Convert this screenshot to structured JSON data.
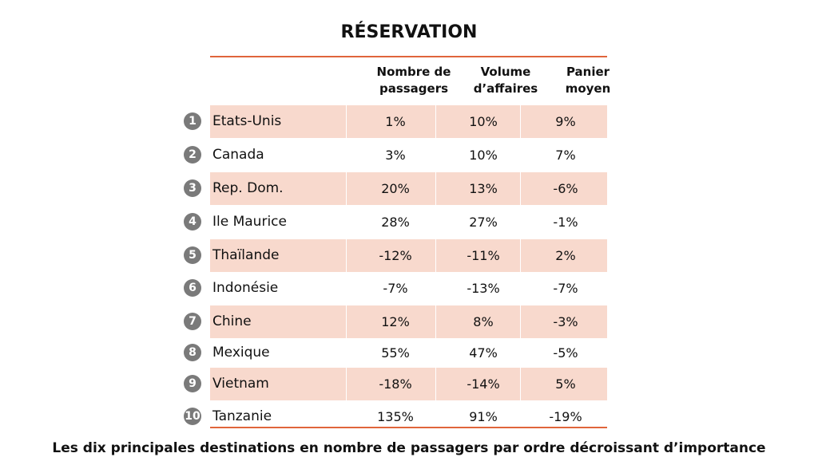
{
  "title": "RÉSERVATION",
  "columns": {
    "passengers": [
      "Nombre de",
      "passagers"
    ],
    "volume": [
      "Volume",
      "d’affaires"
    ],
    "basket": [
      "Panier",
      "moyen"
    ]
  },
  "rows": [
    {
      "rank": "1",
      "country": "Etats-Unis",
      "passengers": "1%",
      "volume": "10%",
      "basket": "9%"
    },
    {
      "rank": "2",
      "country": "Canada",
      "passengers": "3%",
      "volume": "10%",
      "basket": "7%"
    },
    {
      "rank": "3",
      "country": "Rep. Dom.",
      "passengers": "20%",
      "volume": "13%",
      "basket": "-6%"
    },
    {
      "rank": "4",
      "country": "Ile Maurice",
      "passengers": "28%",
      "volume": "27%",
      "basket": "-1%"
    },
    {
      "rank": "5",
      "country": "Thaïlande",
      "passengers": "-12%",
      "volume": "-11%",
      "basket": "2%"
    },
    {
      "rank": "6",
      "country": "Indonésie",
      "passengers": "-7%",
      "volume": "-13%",
      "basket": "-7%"
    },
    {
      "rank": "7",
      "country": "Chine",
      "passengers": "12%",
      "volume": "8%",
      "basket": "-3%"
    },
    {
      "rank": "8",
      "country": "Mexique",
      "passengers": "55%",
      "volume": "47%",
      "basket": "-5%"
    },
    {
      "rank": "9",
      "country": "Vietnam",
      "passengers": "-18%",
      "volume": "-14%",
      "basket": "5%"
    },
    {
      "rank": "10",
      "country": "Tanzanie",
      "passengers": "135%",
      "volume": "91%",
      "basket": "-19%"
    }
  ],
  "caption": "Les dix principales destinations en nombre de passagers par ordre décroissant d’importance",
  "colors": {
    "rule": "#e0653b",
    "shade": "#f8d9cd",
    "badge": "#7a7a7a"
  }
}
